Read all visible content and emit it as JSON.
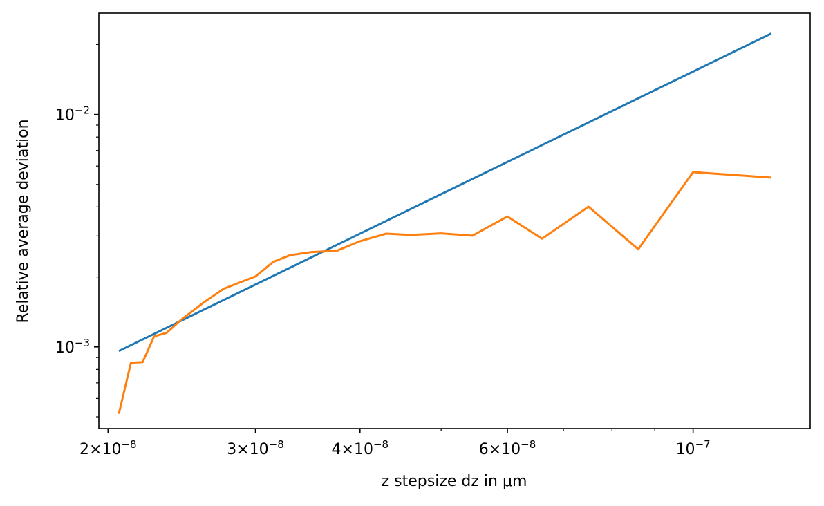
{
  "chart_data": {
    "type": "line",
    "title": "",
    "xlabel": "z stepsize dz in μm",
    "ylabel": "Relative average deviation",
    "xscale": "log",
    "yscale": "log",
    "xlim": [
      1.95e-08,
      1.38e-07
    ],
    "ylim": [
      0.000445,
      0.0273
    ],
    "grid": false,
    "legend": "none",
    "x_major_ticks": [
      {
        "value": 2e-08,
        "mant": "2",
        "exp": "−8"
      },
      {
        "value": 3e-08,
        "mant": "3",
        "exp": "−8"
      },
      {
        "value": 4e-08,
        "mant": "4",
        "exp": "−8"
      },
      {
        "value": 6e-08,
        "mant": "6",
        "exp": "−8"
      },
      {
        "value": 1e-07,
        "mant": "",
        "exp": "−7"
      }
    ],
    "x_minor_ticks": [
      5e-08,
      7e-08,
      8e-08,
      9e-08
    ],
    "y_major_ticks": [
      {
        "value": 0.001,
        "exp": "−3"
      },
      {
        "value": 0.01,
        "exp": "−2"
      }
    ],
    "y_minor_ticks": [
      0.0005,
      0.0006,
      0.0007,
      0.0008,
      0.0009,
      0.002,
      0.003,
      0.004,
      0.005,
      0.006,
      0.007,
      0.008,
      0.009,
      0.02
    ],
    "series": [
      {
        "color": "#1f77b4",
        "points": [
          [
            2.06e-08,
            0.00096
          ],
          [
            1.24e-07,
            0.0223
          ]
        ]
      },
      {
        "color": "#ff7f0e",
        "points": [
          [
            2.06e-08,
            0.000515
          ],
          [
            2.13e-08,
            0.000855
          ],
          [
            2.2e-08,
            0.00086
          ],
          [
            2.27e-08,
            0.00111
          ],
          [
            2.35e-08,
            0.00115
          ],
          [
            2.44e-08,
            0.0013
          ],
          [
            2.6e-08,
            0.00155
          ],
          [
            2.75e-08,
            0.00178
          ],
          [
            3e-08,
            0.00201
          ],
          [
            3.15e-08,
            0.00232
          ],
          [
            3.3e-08,
            0.00248
          ],
          [
            3.5e-08,
            0.00256
          ],
          [
            3.75e-08,
            0.00259
          ],
          [
            4e-08,
            0.00285
          ],
          [
            4.3e-08,
            0.00307
          ],
          [
            4.6e-08,
            0.00303
          ],
          [
            5e-08,
            0.00308
          ],
          [
            5.45e-08,
            0.00301
          ],
          [
            6e-08,
            0.00364
          ],
          [
            6.6e-08,
            0.00292
          ],
          [
            7.5e-08,
            0.00401
          ],
          [
            8.6e-08,
            0.00263
          ],
          [
            1e-07,
            0.00565
          ],
          [
            1.24e-07,
            0.00535
          ]
        ]
      }
    ]
  }
}
